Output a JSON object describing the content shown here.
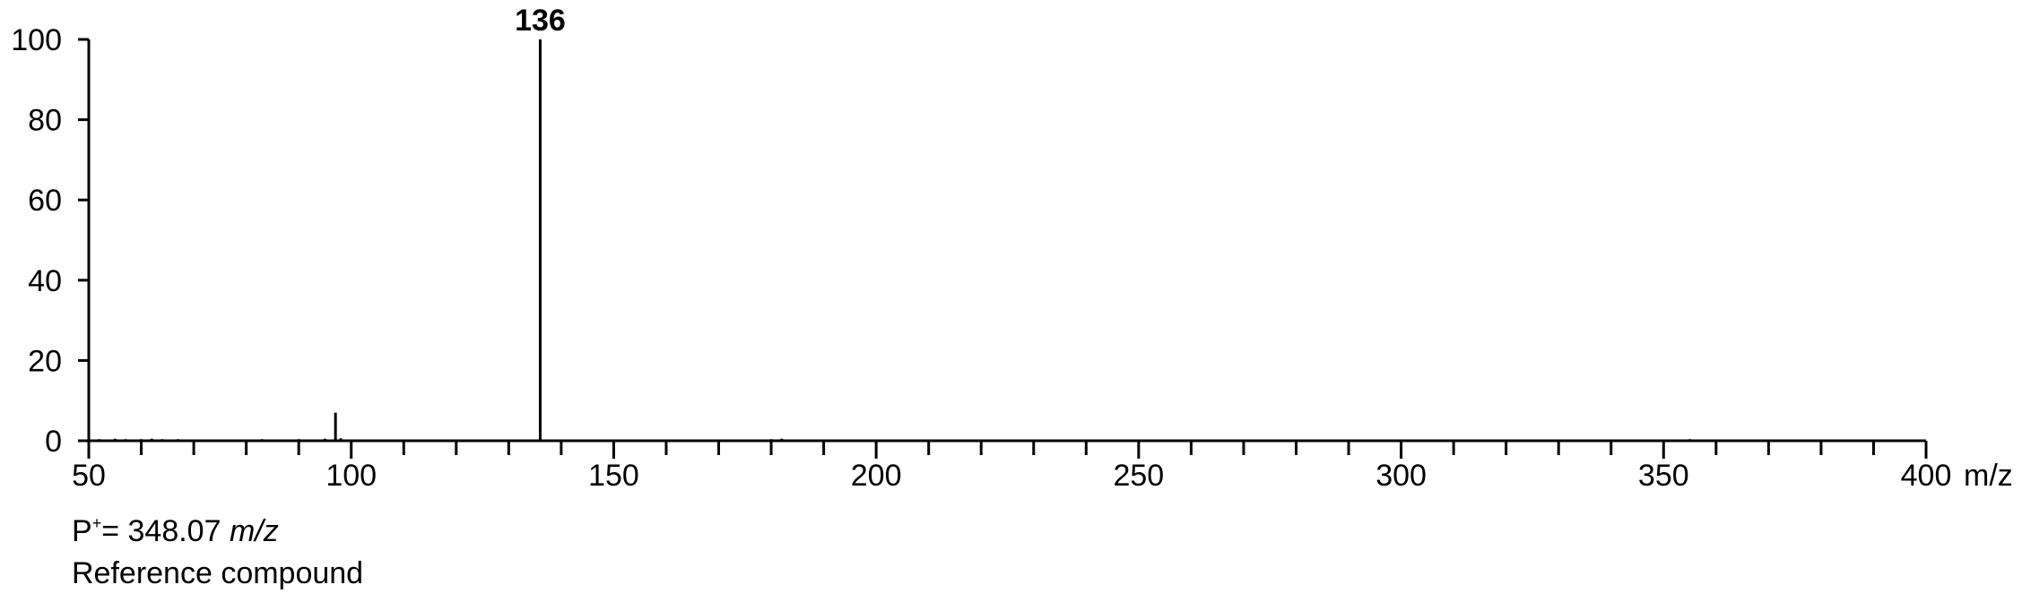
{
  "chart_data": {
    "type": "bar",
    "xlabel": "",
    "ylabel": "",
    "x_unit": "m/z",
    "xlim": [
      50,
      400
    ],
    "ylim": [
      0,
      100
    ],
    "x_ticks": [
      50,
      100,
      150,
      200,
      250,
      300,
      350,
      400
    ],
    "y_ticks": [
      0,
      20,
      40,
      60,
      80,
      100
    ],
    "grid": false,
    "peaks": [
      {
        "mz": 52,
        "intensity": 0.4
      },
      {
        "mz": 55,
        "intensity": 0.5
      },
      {
        "mz": 57,
        "intensity": 0.4
      },
      {
        "mz": 60,
        "intensity": 0.4
      },
      {
        "mz": 62,
        "intensity": 0.5
      },
      {
        "mz": 64,
        "intensity": 0.4
      },
      {
        "mz": 67,
        "intensity": 0.4
      },
      {
        "mz": 75,
        "intensity": 0.3
      },
      {
        "mz": 83,
        "intensity": 0.4
      },
      {
        "mz": 90,
        "intensity": 0.4
      },
      {
        "mz": 95,
        "intensity": 0.5
      },
      {
        "mz": 97,
        "intensity": 7.0
      },
      {
        "mz": 98,
        "intensity": 0.6
      },
      {
        "mz": 136,
        "intensity": 100
      },
      {
        "mz": 158,
        "intensity": 0.3
      },
      {
        "mz": 180,
        "intensity": 0.4
      },
      {
        "mz": 182,
        "intensity": 0.5
      },
      {
        "mz": 187,
        "intensity": 0.3
      },
      {
        "mz": 237,
        "intensity": 0.3
      },
      {
        "mz": 271,
        "intensity": 0.3
      },
      {
        "mz": 276,
        "intensity": 0.3
      },
      {
        "mz": 278,
        "intensity": 0.3
      },
      {
        "mz": 298,
        "intensity": 0.3
      },
      {
        "mz": 355,
        "intensity": 0.4
      },
      {
        "mz": 370,
        "intensity": 0.3
      },
      {
        "mz": 378,
        "intensity": 0.3
      }
    ],
    "labeled_peak": {
      "mz": 136,
      "label": "136"
    }
  },
  "caption": {
    "molecular_ion_prefix": "P",
    "molecular_ion_superscript": "+",
    "molecular_ion_value": "= 348.07 ",
    "molecular_ion_unit": "m/z",
    "compound_label": "Reference compound"
  },
  "colors": {
    "axis": "#000000",
    "peaks": "#000000",
    "background": "#ffffff"
  }
}
